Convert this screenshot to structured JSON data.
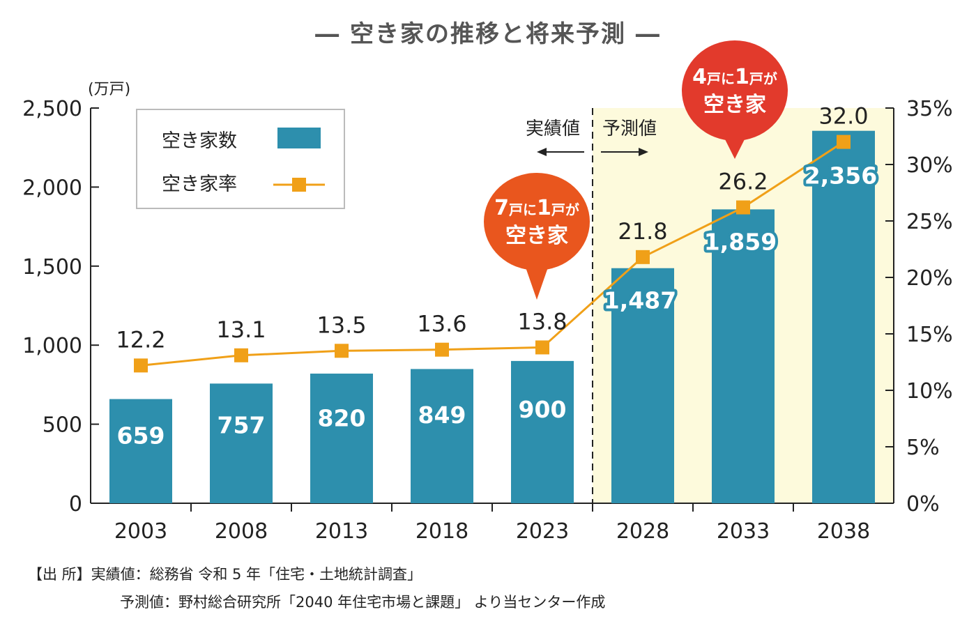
{
  "title": "― 空き家の推移と将来予測 ―",
  "colors": {
    "bar": "#2d8fad",
    "line": "#f0a018",
    "forecast_bg": "#fdfadc",
    "bubble_orange": "#e9561e",
    "bubble_red": "#e23a2c"
  },
  "legend": {
    "bar_label": "空き家数",
    "line_label": "空き家率"
  },
  "phase": {
    "actual": "実績値",
    "forecast": "予測値"
  },
  "bubbles": [
    {
      "num1": "7",
      "mid": "戸に",
      "num2": "1",
      "tail": "戸が",
      "line2": "空き家"
    },
    {
      "num1": "4",
      "mid": "戸に",
      "num2": "1",
      "tail": "戸が",
      "line2": "空き家"
    }
  ],
  "source": {
    "line1": "【出 所】実績値：総務省 令和 5 年「住宅・土地統計調査」",
    "line2": "予測値：野村総合研究所「2040 年住宅市場と課題」 より当センター作成"
  },
  "chart_data": {
    "type": "bar",
    "categories": [
      "2003",
      "2008",
      "2013",
      "2018",
      "2023",
      "2028",
      "2033",
      "2038"
    ],
    "series": [
      {
        "name": "空き家数",
        "type": "bar",
        "axis": "left",
        "values": [
          659,
          757,
          820,
          849,
          900,
          1487,
          1859,
          2356
        ],
        "labels": [
          "659",
          "757",
          "820",
          "849",
          "900",
          "1,487",
          "1,859",
          "2,356"
        ]
      },
      {
        "name": "空き家率",
        "type": "line",
        "axis": "right",
        "values": [
          12.2,
          13.1,
          13.5,
          13.6,
          13.8,
          21.8,
          26.2,
          32.0
        ],
        "labels": [
          "12.2",
          "13.1",
          "13.5",
          "13.6",
          "13.8",
          "21.8",
          "26.2",
          "32.0"
        ]
      }
    ],
    "y_left": {
      "unit": "(万戸)",
      "ylim": [
        0,
        2500
      ],
      "ticks": [
        "0",
        "500",
        "1,000",
        "1,500",
        "2,000",
        "2,500"
      ]
    },
    "y_right": {
      "ylim": [
        0,
        35
      ],
      "ticks": [
        "0%",
        "5%",
        "10%",
        "15%",
        "20%",
        "25%",
        "30%",
        "35%"
      ]
    },
    "forecast_start": "2028",
    "legend_position": "top-left"
  }
}
